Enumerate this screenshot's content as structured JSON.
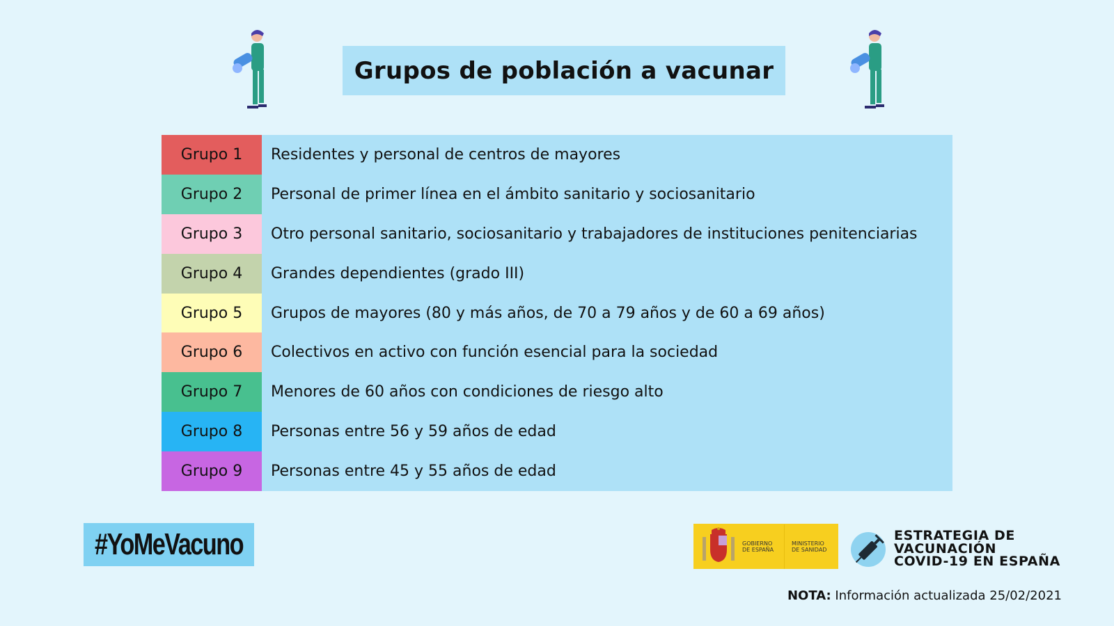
{
  "title": "Grupos de población a vacunar",
  "groups": [
    {
      "label": "Grupo 1",
      "description": "Residentes y personal de centros de mayores",
      "color": "#e35d5d"
    },
    {
      "label": "Grupo 2",
      "description": "Personal de primer línea en el ámbito sanitario y sociosanitario",
      "color": "#6fcfb3"
    },
    {
      "label": "Grupo 3",
      "description": "Otro personal sanitario, sociosanitario  y trabajadores de instituciones penitenciarias",
      "color": "#fcc8dc"
    },
    {
      "label": "Grupo 4",
      "description": "Grandes dependientes (grado III)",
      "color": "#c3d3ac"
    },
    {
      "label": "Grupo 5",
      "description": "Grupos de mayores (80 y más años, de 70 a 79 años y de 60 a 69 años)",
      "color": "#fefdb7"
    },
    {
      "label": "Grupo 6",
      "description": "Colectivos en activo con función esencial para la sociedad",
      "color": "#fdb8a0"
    },
    {
      "label": "Grupo 7",
      "description": "Menores de 60 años con condiciones de riesgo alto",
      "color": "#48c08f"
    },
    {
      "label": "Grupo 8",
      "description": "Personas entre 56 y 59 años de edad",
      "color": "#27b4f4"
    },
    {
      "label": "Grupo 9",
      "description": "Personas entre 45 y 55 años de edad",
      "color": "#c766e2"
    }
  ],
  "hashtag": "#YoMeVacuno",
  "logos": {
    "gobierno": "GOBIERNO DE ESPAÑA",
    "ministerio": "MINISTERIO DE SANIDAD",
    "estrategia": [
      "ESTRATEGIA DE",
      "VACUNACIÓN",
      "COVID-19 EN ESPAÑA"
    ]
  },
  "nota": {
    "label": "NOTA:",
    "text": " Información actualizada 25/02/2021"
  }
}
